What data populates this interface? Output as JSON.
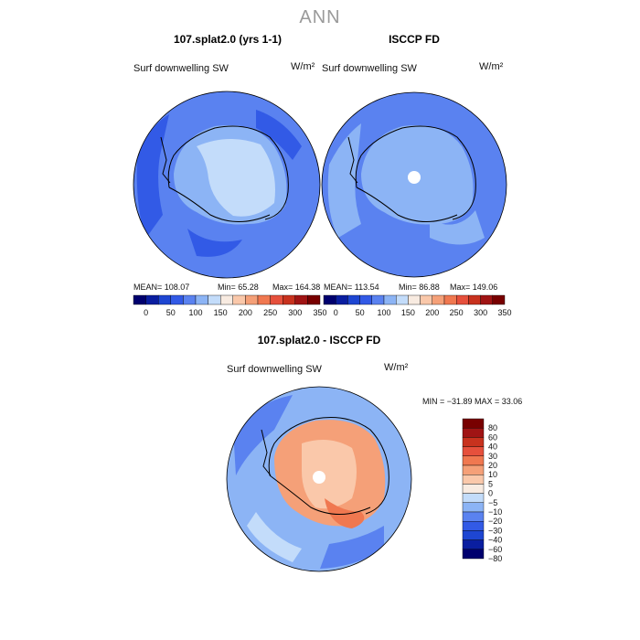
{
  "figure": {
    "title": "ANN",
    "var_label": "Surf downwelling SW",
    "unit": "W/m²"
  },
  "palette": {
    "absolute_colors": [
      "#00006e",
      "#0a1ea0",
      "#1e46d2",
      "#325ae6",
      "#5a82f0",
      "#8cb4f5",
      "#c3dcfa",
      "#f8ebe1",
      "#fac8aa",
      "#f5a078",
      "#f07850",
      "#e6503c",
      "#c8321e",
      "#a01414",
      "#780000"
    ],
    "absolute_ticks": [
      "0",
      "50",
      "100",
      "150",
      "200",
      "250",
      "300",
      "350"
    ],
    "diff_colors": [
      "#00006e",
      "#0a1ea0",
      "#1e46d2",
      "#325ae6",
      "#5a82f0",
      "#8cb4f5",
      "#c3dcfa",
      "#f8ebe1",
      "#fac8aa",
      "#f5a078",
      "#f07850",
      "#e6503c",
      "#c8321e",
      "#a01414",
      "#780000"
    ],
    "diff_levels": [
      "80",
      "60",
      "40",
      "30",
      "20",
      "10",
      "5",
      "0",
      "−5",
      "−10",
      "−20",
      "−30",
      "−40",
      "−60",
      "−80"
    ]
  },
  "chart_data": [
    {
      "type": "heatmap",
      "projection": "south-polar-stereographic",
      "title": "107.splat2.0 (yrs 1-1)",
      "var_label": "Surf downwelling SW",
      "unit": "W/m²",
      "stats": {
        "mean": "108.07",
        "min": "65.28",
        "max": "164.38"
      },
      "stats_text": {
        "mean": "MEAN= 108.07",
        "min": "Min=  65.28",
        "max": "Max= 164.38"
      },
      "colorbar": {
        "ticks": [
          0,
          50,
          100,
          150,
          200,
          250,
          300,
          350
        ],
        "range": [
          0,
          350
        ]
      }
    },
    {
      "type": "heatmap",
      "projection": "south-polar-stereographic",
      "title": "ISCCP FD",
      "var_label": "Surf downwelling SW",
      "unit": "W/m²",
      "stats": {
        "mean": "113.54",
        "min": "86.88",
        "max": "149.06"
      },
      "stats_text": {
        "mean": "MEAN= 113.54",
        "min": "Min=  86.88",
        "max": "Max= 149.06"
      },
      "colorbar": {
        "ticks": [
          0,
          50,
          100,
          150,
          200,
          250,
          300,
          350
        ],
        "range": [
          0,
          350
        ]
      }
    },
    {
      "type": "heatmap",
      "projection": "south-polar-stereographic",
      "title": "107.splat2.0 - ISCCP FD",
      "var_label": "Surf downwelling SW",
      "unit": "W/m²",
      "stats": {
        "min": "-31.89",
        "max": "33.06"
      },
      "stats_text": "MIN = −31.89  MAX =  33.06",
      "colorbar": {
        "levels": [
          -80,
          -60,
          -40,
          -30,
          -20,
          -10,
          -5,
          0,
          5,
          10,
          20,
          30,
          40,
          60,
          80
        ]
      }
    }
  ]
}
